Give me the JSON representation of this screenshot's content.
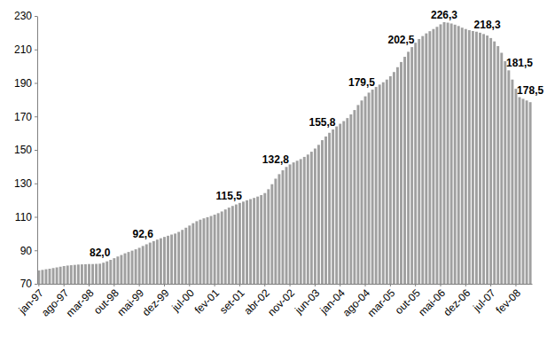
{
  "chart_data": {
    "type": "bar",
    "color": "#a0a0a0",
    "data_labels": true,
    "ylim": [
      70,
      230
    ],
    "yticks": [
      70,
      90,
      110,
      130,
      150,
      170,
      190,
      210,
      230
    ],
    "categories": [
      "jan-97",
      null,
      null,
      null,
      null,
      null,
      null,
      "ago-97",
      null,
      null,
      null,
      null,
      null,
      null,
      "mar-98",
      null,
      null,
      null,
      null,
      null,
      null,
      "out-98",
      null,
      null,
      null,
      null,
      null,
      null,
      "mai-99",
      null,
      null,
      null,
      null,
      null,
      null,
      "dez-99",
      null,
      null,
      null,
      null,
      null,
      null,
      "jul-00",
      null,
      null,
      null,
      null,
      null,
      null,
      "fev-01",
      null,
      null,
      null,
      null,
      null,
      null,
      "set-01",
      null,
      null,
      null,
      null,
      null,
      null,
      "abr-02",
      null,
      null,
      null,
      null,
      null,
      null,
      "nov-02",
      null,
      null,
      null,
      null,
      null,
      null,
      "jun-03",
      null,
      null,
      null,
      null,
      null,
      null,
      "jan-04",
      null,
      null,
      null,
      null,
      null,
      null,
      "ago-04",
      null,
      null,
      null,
      null,
      null,
      null,
      "mar-05",
      null,
      null,
      null,
      null,
      null,
      null,
      "out-05",
      null,
      null,
      null,
      null,
      null,
      null,
      "mai-06",
      null,
      null,
      null,
      null,
      null,
      null,
      "dez-06",
      null,
      null,
      null,
      null,
      null,
      null,
      "jul-07",
      null,
      null,
      null,
      null,
      null,
      null,
      "fev-08",
      null,
      null,
      null,
      null
    ],
    "values": [
      78.0,
      78.3,
      78.7,
      79.0,
      79.4,
      79.8,
      80.2,
      80.6,
      80.9,
      81.1,
      81.3,
      81.5,
      81.6,
      81.7,
      81.8,
      81.8,
      81.9,
      82.0,
      82.6,
      83.4,
      84.3,
      85.3,
      86.3,
      87.2,
      88.2,
      89.0,
      89.8,
      90.6,
      91.5,
      92.6,
      93.6,
      94.6,
      95.5,
      96.4,
      97.2,
      98.0,
      98.7,
      99.4,
      100.0,
      101.0,
      102.2,
      103.5,
      104.8,
      106.2,
      107.4,
      108.3,
      109.1,
      109.8,
      110.5,
      111.3,
      112.2,
      113.2,
      114.4,
      115.5,
      116.5,
      117.4,
      118.3,
      119.1,
      119.9,
      120.6,
      121.3,
      122.1,
      123.0,
      124.2,
      126.5,
      129.5,
      132.8,
      135.5,
      137.8,
      139.8,
      141.3,
      142.5,
      143.5,
      144.5,
      145.8,
      147.2,
      148.9,
      150.8,
      153.0,
      155.8,
      158.0,
      160.2,
      162.2,
      164.0,
      165.6,
      167.2,
      169.0,
      171.2,
      173.8,
      176.8,
      179.5,
      182.0,
      184.2,
      186.0,
      187.6,
      189.0,
      190.4,
      192.0,
      194.0,
      196.5,
      199.4,
      202.5,
      205.6,
      208.6,
      211.4,
      214.0,
      216.2,
      218.0,
      219.6,
      220.9,
      222.2,
      223.5,
      225.0,
      226.3,
      226.0,
      225.5,
      224.8,
      224.0,
      223.0,
      222.2,
      221.5,
      221.0,
      220.6,
      220.0,
      219.2,
      218.3,
      216.8,
      214.8,
      212.0,
      208.0,
      203.0,
      197.5,
      192.0,
      186.5,
      181.5,
      180.5,
      179.5,
      178.5
    ],
    "value_labels": [
      null,
      null,
      null,
      null,
      null,
      null,
      null,
      null,
      null,
      null,
      null,
      null,
      null,
      null,
      null,
      null,
      null,
      "82,0",
      null,
      null,
      null,
      null,
      null,
      null,
      null,
      null,
      null,
      null,
      null,
      "92,6",
      null,
      null,
      null,
      null,
      null,
      null,
      null,
      null,
      null,
      null,
      null,
      null,
      null,
      null,
      null,
      null,
      null,
      null,
      null,
      null,
      null,
      null,
      null,
      "115,5",
      null,
      null,
      null,
      null,
      null,
      null,
      null,
      null,
      null,
      null,
      null,
      null,
      "132,8",
      null,
      null,
      null,
      null,
      null,
      null,
      null,
      null,
      null,
      null,
      null,
      null,
      "155,8",
      null,
      null,
      null,
      null,
      null,
      null,
      null,
      null,
      null,
      null,
      "179,5",
      null,
      null,
      null,
      null,
      null,
      null,
      null,
      null,
      null,
      null,
      "202,5",
      null,
      null,
      null,
      null,
      null,
      null,
      null,
      null,
      null,
      null,
      null,
      "226,3",
      null,
      null,
      null,
      null,
      null,
      null,
      null,
      null,
      null,
      null,
      null,
      "218,3",
      null,
      null,
      null,
      null,
      null,
      null,
      null,
      null,
      "181,5",
      null,
      null,
      "178,5"
    ]
  }
}
